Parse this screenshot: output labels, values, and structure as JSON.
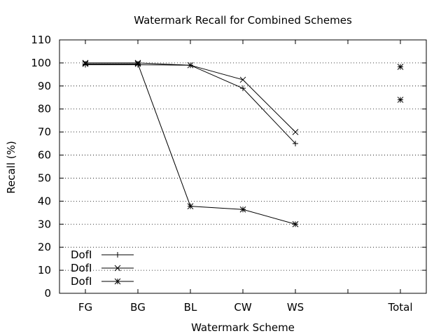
{
  "chart_data": {
    "type": "line",
    "title": "Watermark Recall for Combined Schemes",
    "xlabel": "Watermark Scheme",
    "ylabel": "Recall (%)",
    "categories": [
      "FG",
      "BG",
      "BL",
      "CW",
      "WS",
      "",
      "Total"
    ],
    "ylim": [
      0,
      110
    ],
    "yticks": [
      0,
      10,
      20,
      30,
      40,
      50,
      60,
      70,
      80,
      90,
      100,
      110
    ],
    "grid": "horizontal dotted",
    "legend_position": "bottom-left",
    "series": [
      {
        "name": "DofI",
        "marker": "plus",
        "color": "#000000",
        "values": [
          99.2,
          99.2,
          99.0,
          89.0,
          65.0,
          null,
          null
        ]
      },
      {
        "name": "DofI",
        "marker": "cross",
        "color": "#000000",
        "values": [
          100.0,
          100.0,
          99.0,
          92.7,
          70.0,
          null,
          null
        ]
      },
      {
        "name": "DofI",
        "marker": "star",
        "color": "#000000",
        "values": [
          99.6,
          99.6,
          37.8,
          36.4,
          30.0,
          null,
          null
        ]
      }
    ],
    "total_points": [
      {
        "category": "Total",
        "marker": "star",
        "value": 98.3
      },
      {
        "category": "Total",
        "marker": "star",
        "value": 84.0
      }
    ]
  }
}
